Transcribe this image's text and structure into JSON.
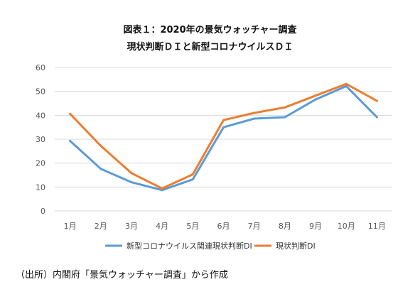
{
  "title_line1": "図表１：2020年の景気ウォッチャー調査",
  "title_line2": "現状判断ＤＩと新型コロナウイルスＤＩ",
  "source": "（出所）内閣府「景気ウォッチャー調査」から作成",
  "chart_data": {
    "type": "line",
    "title": "図表１：2020年の景気ウォッチャー調査 現状判断ＤＩと新型コロナウイルスＤＩ",
    "xlabel": "",
    "ylabel": "",
    "categories": [
      "1月",
      "2月",
      "3月",
      "4月",
      "5月",
      "6月",
      "7月",
      "8月",
      "9月",
      "10月",
      "11月"
    ],
    "ylim": [
      0,
      60
    ],
    "yticks": [
      0,
      10,
      20,
      30,
      40,
      50,
      60
    ],
    "grid": true,
    "legend_position": "bottom",
    "series": [
      {
        "name": "新型コロナウイルス関連現状判断DI",
        "color": "#5b9bd5",
        "values": [
          29.3,
          17.6,
          12.0,
          8.7,
          13.2,
          35.0,
          38.6,
          39.2,
          46.6,
          52.2,
          39.2
        ]
      },
      {
        "name": "現状判断DI",
        "color": "#ed7d31",
        "values": [
          40.6,
          27.2,
          15.8,
          9.4,
          15.3,
          38.0,
          41.0,
          43.3,
          48.2,
          53.1,
          46.0
        ]
      }
    ]
  }
}
